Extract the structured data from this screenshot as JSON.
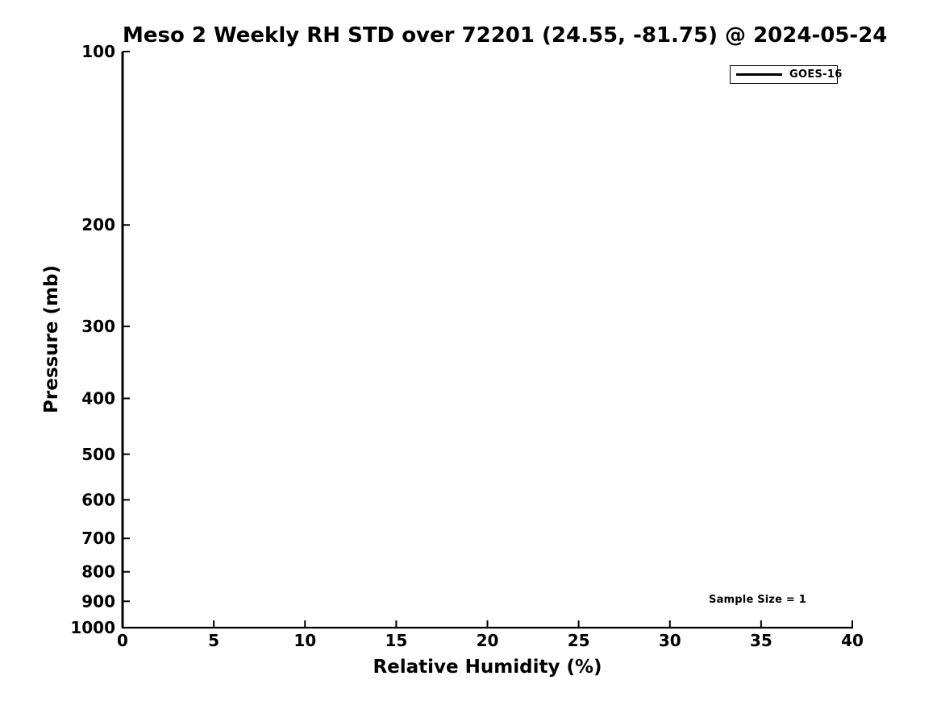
{
  "chart_data": {
    "type": "line",
    "title": "Meso 2 Weekly RH STD over 72201 (24.55, -81.75) @ 2024-05-24",
    "xlabel": "Relative Humidity (%)",
    "ylabel": "Pressure (mb)",
    "xlim": [
      0,
      40
    ],
    "ylim": [
      1000,
      100
    ],
    "yscale": "log",
    "y_inverted": true,
    "grid": false,
    "background": "#ffffff",
    "text_color": "#000000",
    "x_ticks": [
      0,
      5,
      10,
      15,
      20,
      25,
      30,
      35,
      40
    ],
    "y_ticks": [
      100,
      200,
      300,
      400,
      500,
      600,
      700,
      800,
      900,
      1000
    ],
    "legend_position": "upper right",
    "series": [
      {
        "name": "GOES-16",
        "color": "#000000",
        "x": [
          0,
          0
        ],
        "y": [
          100,
          1000
        ]
      }
    ],
    "annotations": [
      {
        "text": "Sample Size = 1"
      }
    ]
  }
}
